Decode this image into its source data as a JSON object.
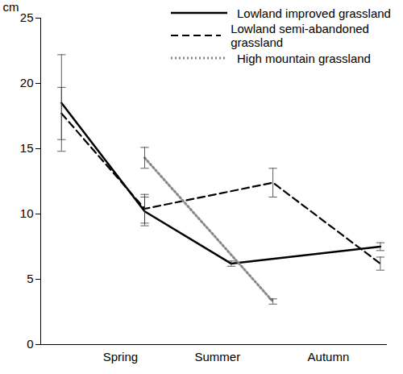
{
  "chart_data": {
    "type": "line",
    "y_label": "cm",
    "xlim": [
      0,
      10
    ],
    "xticks": [
      {
        "value": 2.3,
        "label": "Spring"
      },
      {
        "value": 5.1,
        "label": "Summer"
      },
      {
        "value": 8.3,
        "label": "Autumn"
      }
    ],
    "ylim": [
      0,
      25
    ],
    "yticks": [
      0,
      5,
      10,
      15,
      20,
      25
    ],
    "grid": false,
    "legend": "top-right",
    "series": [
      {
        "name": "Lowland improved grassland",
        "color": "#000000",
        "line_style": "solid",
        "x": [
          0.6,
          3.0,
          5.5,
          9.8
        ],
        "values": [
          18.5,
          10.2,
          6.2,
          7.5
        ],
        "errors": [
          3.7,
          1.1,
          0.2,
          0.3
        ]
      },
      {
        "name": "Lowland semi-abandoned grassland",
        "color": "#000000",
        "line_style": "dashed",
        "x": [
          0.6,
          3.0,
          6.7,
          9.8
        ],
        "values": [
          17.7,
          10.4,
          12.4,
          6.2
        ],
        "errors": [
          2.0,
          1.1,
          1.1,
          0.5
        ]
      },
      {
        "name": "High mountain grassland",
        "color": "#888888",
        "line_style": "dotted",
        "x": [
          3.0,
          6.7
        ],
        "values": [
          14.3,
          3.3
        ],
        "errors": [
          0.8,
          0.2
        ]
      }
    ]
  }
}
